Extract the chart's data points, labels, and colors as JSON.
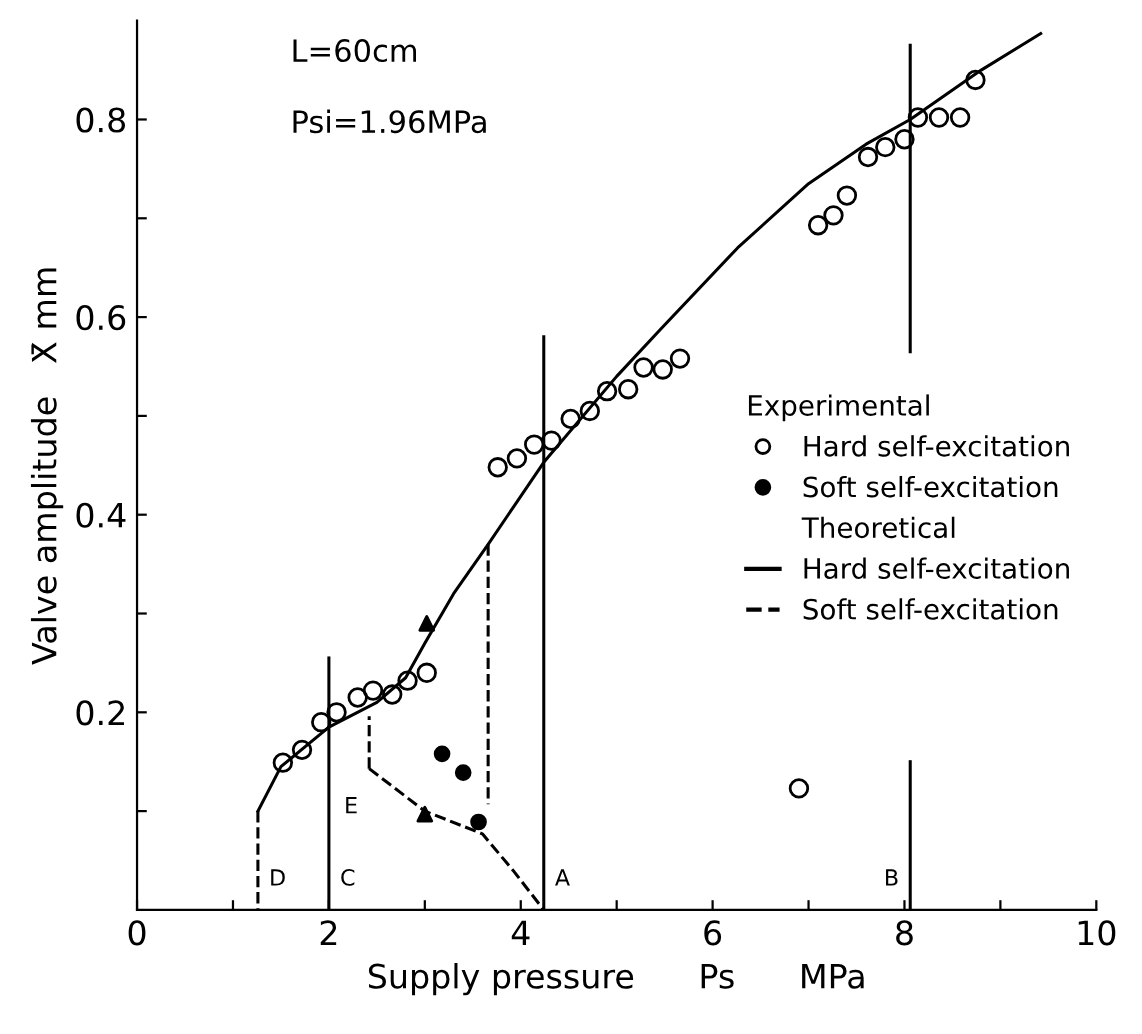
{
  "chart_data": {
    "type": "scatter",
    "xlabel": "Supply pressure      Ps      MPa",
    "ylabel": "Valve amplitude   X̄ mm",
    "legend_title": "Experimental",
    "annotations": [
      "L=60cm",
      "Psi=1.96MPa",
      "Theoretical",
      {
        "text": "D",
        "x": 1.26,
        "y": 0.02
      },
      {
        "text": "C",
        "x": 2.0,
        "y": 0.02
      },
      {
        "text": "A",
        "x": 4.24,
        "y": 0.02
      },
      {
        "text": "B",
        "x": 8.06,
        "y": 0.02
      },
      {
        "text": "E",
        "x": 2.42,
        "y": 0.143
      }
    ],
    "xlim": [
      0,
      10
    ],
    "ylim": [
      0,
      0.9
    ],
    "xticks": [
      0,
      {
        "value": 1,
        "label": null
      },
      2,
      {
        "value": 3,
        "label": null
      },
      4,
      {
        "value": 5,
        "label": null
      },
      6,
      {
        "value": 7,
        "label": null
      },
      8,
      {
        "value": 9,
        "label": null
      },
      10
    ],
    "yticks": [
      {
        "value": 0.1,
        "label": null
      },
      0.2,
      {
        "value": 0.3,
        "label": null
      },
      0.4,
      {
        "value": 0.5,
        "label": null
      },
      0.6,
      {
        "value": 0.7,
        "label": null
      },
      0.8
    ],
    "grid": false,
    "legend": "right",
    "series": [
      {
        "name": "Hard self-excitation",
        "marker": "circle",
        "color": "#000000",
        "x": [
          1.52,
          1.72,
          1.92,
          2.08,
          2.3,
          2.46,
          2.66,
          2.82,
          3.02,
          3.76,
          3.96,
          4.14,
          4.32,
          4.52,
          4.72,
          4.9,
          5.12,
          5.28,
          5.48,
          5.66,
          6.9,
          7.1,
          7.26,
          7.4,
          7.62,
          7.8,
          8.0,
          8.14,
          8.36,
          8.58,
          8.74
        ],
        "values": [
          0.149,
          0.162,
          0.19,
          0.2,
          0.215,
          0.222,
          0.218,
          0.232,
          0.24,
          0.448,
          0.457,
          0.471,
          0.475,
          0.497,
          0.505,
          0.525,
          0.527,
          0.549,
          0.547,
          0.558,
          0.123,
          0.693,
          0.703,
          0.723,
          0.762,
          0.772,
          0.78,
          0.802,
          0.802,
          0.802,
          0.84
        ]
      },
      {
        "name": "Soft self-excitation",
        "marker": "circle",
        "color": "#000000",
        "x": [
          3.18,
          3.4,
          3.56
        ],
        "values": [
          0.158,
          0.139,
          0.089
        ]
      },
      {
        "name": "Hard self-excitation",
        "type": "line",
        "line_style": "solid",
        "color": "#000000",
        "x": [
          1.26,
          1.5,
          2.0,
          2.5,
          2.8,
          3.0,
          3.3,
          3.66,
          4.24,
          5.0,
          5.46,
          6.26,
          7.0,
          7.6,
          8.06,
          8.8,
          9.42
        ],
        "values": [
          0.1,
          0.145,
          0.185,
          0.21,
          0.235,
          0.27,
          0.32,
          0.37,
          0.453,
          0.54,
          0.588,
          0.67,
          0.735,
          0.775,
          0.8,
          0.85,
          0.887
        ]
      },
      {
        "name": "Soft self-excitation",
        "type": "line",
        "line_style": "dashed",
        "color": "#000000",
        "x": [
          2.42,
          3.0,
          3.6,
          3.92,
          4.24
        ],
        "values": [
          0.143,
          0.1,
          0.077,
          0.04,
          0
        ]
      },
      {
        "type": "line",
        "line_style": "solid",
        "color": "#000000",
        "x": [
          2.0,
          2.0
        ],
        "values": [
          0,
          0.255
        ]
      },
      {
        "type": "line",
        "line_style": "solid",
        "color": "#000000",
        "x": [
          4.24,
          4.24
        ],
        "values": [
          0,
          0.58
        ]
      },
      {
        "type": "line",
        "line_style": "solid",
        "color": "#000000",
        "x": [
          8.06,
          8.06
        ],
        "values": [
          0,
          0.15
        ]
      },
      {
        "type": "line",
        "line_style": "solid",
        "color": "#000000",
        "x": [
          8.06,
          8.06
        ],
        "values": [
          0.565,
          0.875
        ]
      },
      {
        "type": "line",
        "line_style": "dashed",
        "color": "#000000",
        "x": [
          1.26,
          1.26
        ],
        "values": [
          0.1,
          0
        ]
      },
      {
        "type": "line",
        "line_style": "dashed",
        "color": "#000000",
        "x": [
          3.66,
          3.66
        ],
        "values": [
          0.37,
          0.107
        ]
      },
      {
        "type": "line",
        "line_style": "dashed",
        "color": "#000000",
        "x": [
          2.42,
          2.42
        ],
        "values": [
          0.143,
          0.196
        ]
      },
      {
        "marker": "triangle",
        "color": "#000000",
        "x": [
          3.02,
          3.0
        ],
        "values": [
          0.29,
          0.097
        ]
      }
    ]
  }
}
